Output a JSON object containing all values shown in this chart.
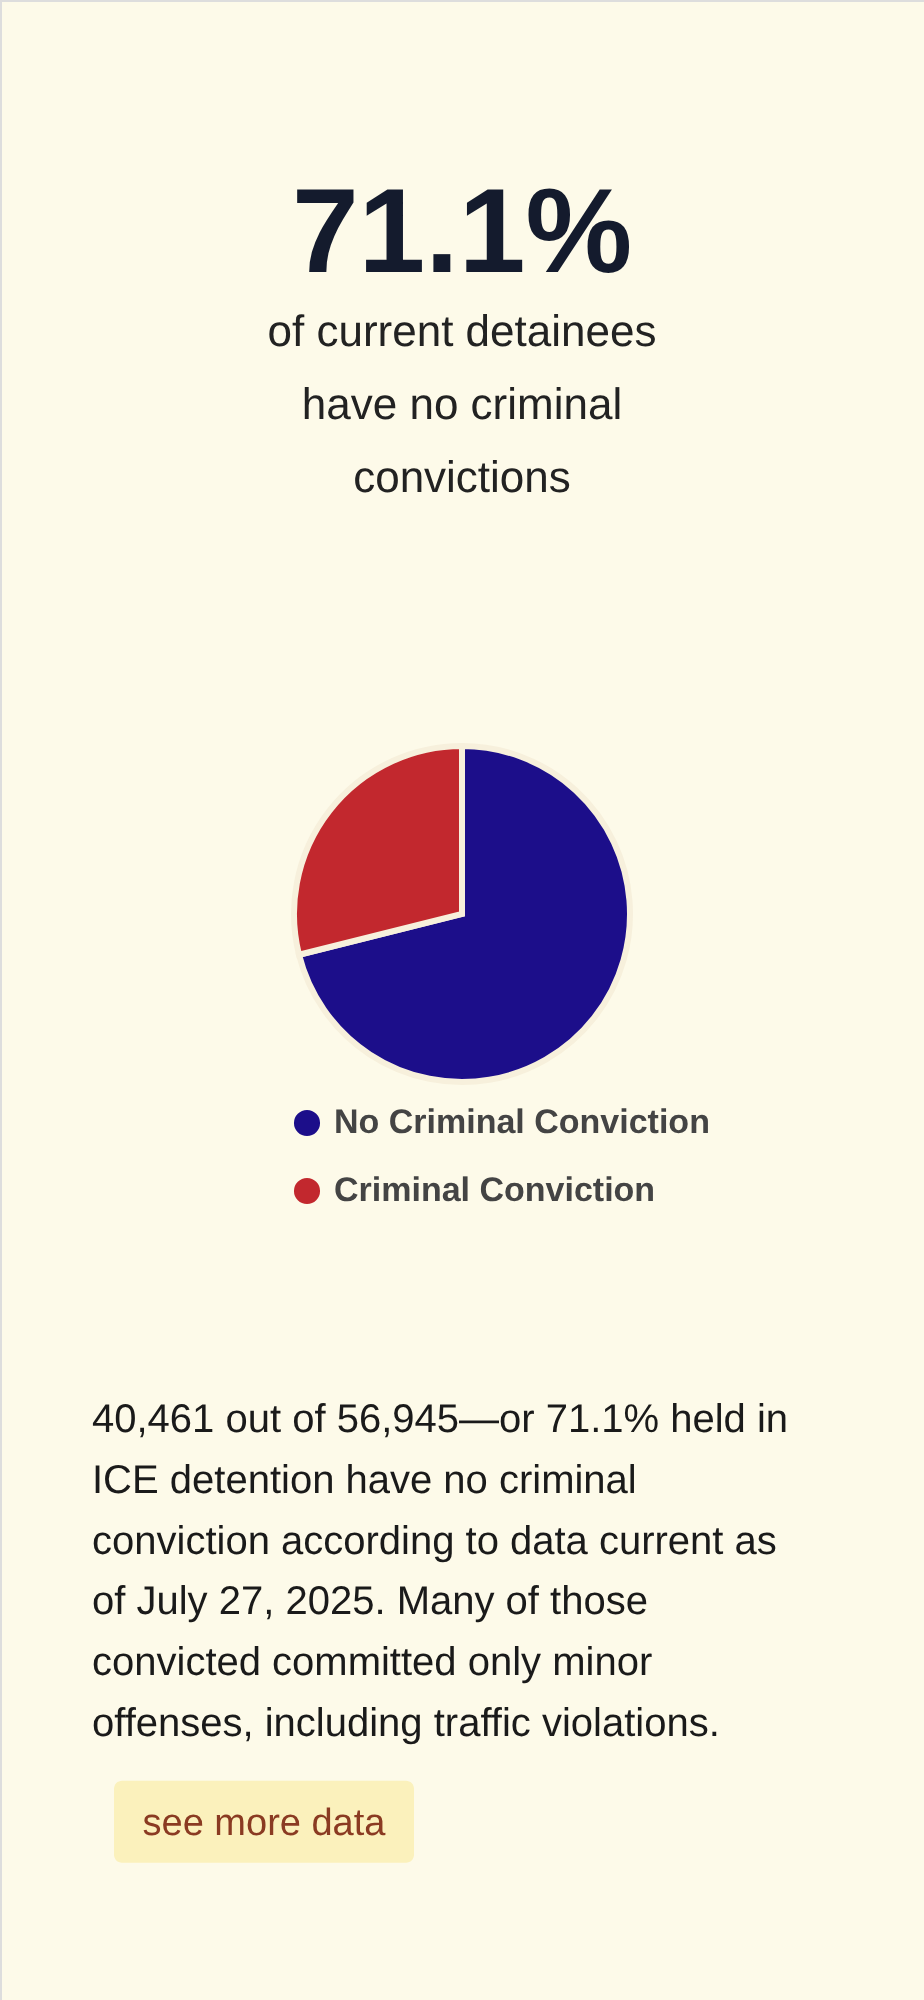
{
  "chart_data": {
    "type": "pie",
    "title": "71.1%",
    "subtitle": "of current detainees have no criminal convictions",
    "categories": [
      "No Criminal Conviction",
      "Criminal Conviction"
    ],
    "values": [
      71.1,
      28.9
    ],
    "colors": [
      "#1c0e8a",
      "#c2282e"
    ],
    "legend": "bottom",
    "annotations": [
      "40,461 out of 56,945—or 71.1% held in ICE detention have no criminal conviction according to data current as of July 27, 2025. Many of those convicted committed only minor offenses, including traffic violations.",
      "see more data"
    ]
  }
}
